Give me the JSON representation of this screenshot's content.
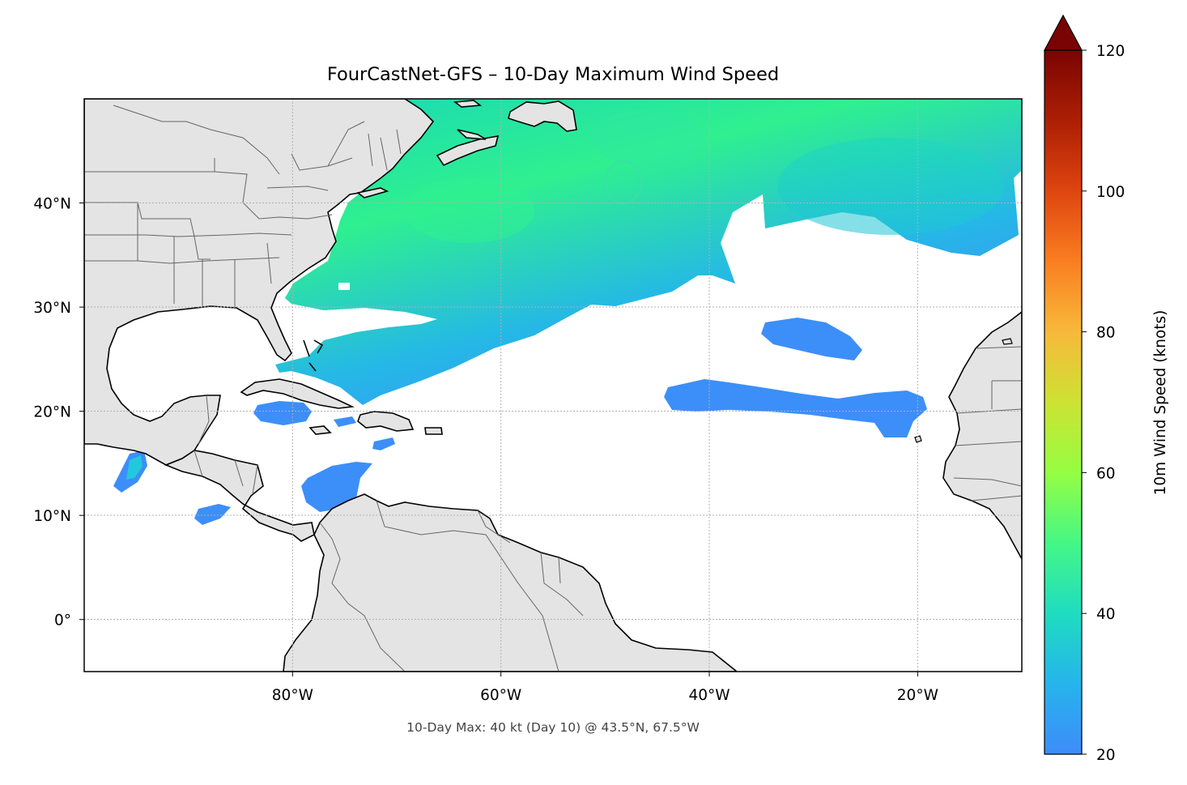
{
  "map": {
    "title": "FourCastNet-GFS – 10-Day Maximum Wind Speed",
    "footer": "10-Day Max: 40 kt (Day 10) @ 43.5°N, 67.5°W",
    "extent": {
      "lon": [
        -100,
        -10
      ],
      "lat": [
        -5,
        50
      ]
    },
    "gridlines": true,
    "lon_ticks": [
      {
        "value": -80,
        "label": "80°W"
      },
      {
        "value": -60,
        "label": "60°W"
      },
      {
        "value": -40,
        "label": "40°W"
      },
      {
        "value": -20,
        "label": "20°W"
      }
    ],
    "lat_ticks": [
      {
        "value": 40,
        "label": "40°N"
      },
      {
        "value": 30,
        "label": "30°N"
      },
      {
        "value": 20,
        "label": "20°N"
      },
      {
        "value": 10,
        "label": "10°N"
      },
      {
        "value": 0,
        "label": "0°"
      }
    ],
    "colors": {
      "land": "#e4e4e4",
      "coastline": "#000000",
      "borders": "#666666",
      "grid": "#b0b0b0"
    }
  },
  "colorbar": {
    "label": "10m Wind Speed (knots)",
    "colormap": "turbo",
    "range": [
      20,
      120
    ],
    "extend": "max",
    "ticks": [
      {
        "value": 20,
        "label": "20"
      },
      {
        "value": 40,
        "label": "40"
      },
      {
        "value": 60,
        "label": "60"
      },
      {
        "value": 80,
        "label": "80"
      },
      {
        "value": 100,
        "label": "100"
      },
      {
        "value": 120,
        "label": "120"
      }
    ]
  }
}
